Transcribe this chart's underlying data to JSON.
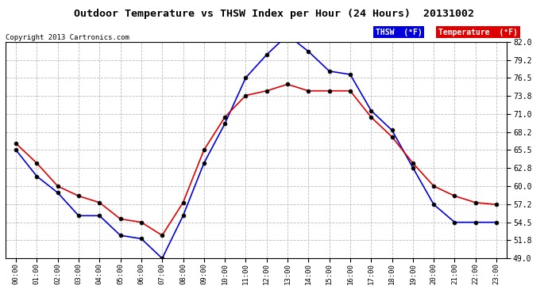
{
  "title": "Outdoor Temperature vs THSW Index per Hour (24 Hours)  20131002",
  "copyright": "Copyright 2013 Cartronics.com",
  "hours": [
    "00:00",
    "01:00",
    "02:00",
    "03:00",
    "04:00",
    "05:00",
    "06:00",
    "07:00",
    "08:00",
    "09:00",
    "10:00",
    "11:00",
    "12:00",
    "13:00",
    "14:00",
    "15:00",
    "16:00",
    "17:00",
    "18:00",
    "19:00",
    "20:00",
    "21:00",
    "22:00",
    "23:00"
  ],
  "thsw": [
    65.5,
    61.5,
    59.0,
    55.5,
    55.5,
    52.5,
    52.0,
    49.0,
    55.5,
    63.5,
    69.5,
    76.5,
    80.0,
    83.0,
    80.5,
    77.5,
    77.0,
    71.5,
    68.5,
    62.8,
    57.2,
    54.5,
    54.5,
    54.5
  ],
  "temperature": [
    66.5,
    63.5,
    60.0,
    58.5,
    57.5,
    55.0,
    54.5,
    52.5,
    57.5,
    65.5,
    70.5,
    73.8,
    74.5,
    75.5,
    74.5,
    74.5,
    74.5,
    70.5,
    67.5,
    63.5,
    60.0,
    58.5,
    57.5,
    57.2
  ],
  "thsw_color": "#0000dd",
  "temp_color": "#dd0000",
  "bg_color": "#ffffff",
  "grid_color": "#bbbbbb",
  "ylim_min": 49.0,
  "ylim_max": 82.0,
  "yticks": [
    49.0,
    51.8,
    54.5,
    57.2,
    60.0,
    62.8,
    65.5,
    68.2,
    71.0,
    73.8,
    76.5,
    79.2,
    82.0
  ],
  "ytick_labels": [
    "49.0",
    "51.8",
    "54.5",
    "57.2",
    "60.0",
    "62.8",
    "65.5",
    "68.2",
    "71.0",
    "73.8",
    "76.5",
    "79.2",
    "82.0"
  ],
  "legend_thsw_label": "THSW  (°F)",
  "legend_temp_label": "Temperature  (°F)"
}
